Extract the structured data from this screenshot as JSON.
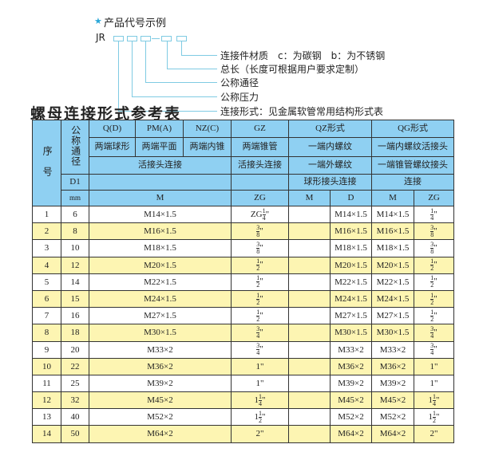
{
  "legend": {
    "heading": "产品代号示例",
    "star_color": "#2aa7d8",
    "code": "JR",
    "labels": [
      "连接件材质　c：为碳钢　b：为不锈钢",
      "总长（长度可根据用户要求定制）",
      "公称通径",
      "公称压力",
      "连接形式：见金属软管常用结构形式表"
    ]
  },
  "title": "螺母连接形式参考表",
  "table": {
    "header": {
      "seq": "序　号",
      "dn": "公称通径",
      "d1": "D1",
      "mm": "mm",
      "qd": "Q(D)",
      "pm": "PM(A)",
      "nz": "NZ(C)",
      "gz": "GZ",
      "qz": "QZ形式",
      "qg": "QG形式",
      "qd2": "两端球形",
      "pm2": "两端平面",
      "nz2": "两端内锥",
      "gz2": "两端锥管",
      "qz2": "一端内螺纹",
      "qg2": "一端内螺纹活接头",
      "union": "活接头连接",
      "gz3": "活接头连接",
      "qz3": "一端外螺纹",
      "qg3": "一端锥管螺纹接头",
      "qz4": "球形接头连接",
      "qg4": "连接",
      "m": "M",
      "zg": "ZG",
      "qzm": "M",
      "qzd": "D",
      "qgm": "M",
      "qgzg": "ZG"
    },
    "header_color": "#8fd0f2",
    "stripe_color": "#fdf5b2",
    "rows": [
      {
        "no": "1",
        "dn": "6",
        "m": "M14×1.5",
        "zg": "ZG|1/4|\"",
        "qzm": "",
        "qzd": "M14×1.5",
        "qgm": "M14×1.5",
        "qgzg": "|1/4|\""
      },
      {
        "no": "2",
        "dn": "8",
        "m": "M16×1.5",
        "zg": "|3/8|\"",
        "qzm": "",
        "qzd": "M16×1.5",
        "qgm": "M16×1.5",
        "qgzg": "|3/8|\""
      },
      {
        "no": "3",
        "dn": "10",
        "m": "M18×1.5",
        "zg": "|3/8|\"",
        "qzm": "",
        "qzd": "M18×1.5",
        "qgm": "M18×1.5",
        "qgzg": "|3/8|\""
      },
      {
        "no": "4",
        "dn": "12",
        "m": "M20×1.5",
        "zg": "|1/2|\"",
        "qzm": "",
        "qzd": "M20×1.5",
        "qgm": "M20×1.5",
        "qgzg": "|1/2|\""
      },
      {
        "no": "5",
        "dn": "14",
        "m": "M22×1.5",
        "zg": "|1/2|\"",
        "qzm": "",
        "qzd": "M22×1.5",
        "qgm": "M22×1.5",
        "qgzg": "|1/2|\""
      },
      {
        "no": "6",
        "dn": "15",
        "m": "M24×1.5",
        "zg": "|1/2|\"",
        "qzm": "",
        "qzd": "M24×1.5",
        "qgm": "M24×1.5",
        "qgzg": "|1/2|\""
      },
      {
        "no": "7",
        "dn": "16",
        "m": "M27×1.5",
        "zg": "|1/2|\"",
        "qzm": "",
        "qzd": "M27×1.5",
        "qgm": "M27×1.5",
        "qgzg": "|1/2|\""
      },
      {
        "no": "8",
        "dn": "18",
        "m": "M30×1.5",
        "zg": "|3/4|\"",
        "qzm": "",
        "qzd": "M30×1.5",
        "qgm": "M30×1.5",
        "qgzg": "|3/4|\""
      },
      {
        "no": "9",
        "dn": "20",
        "m": "M33×2",
        "zg": "|3/4|\"",
        "qzm": "",
        "qzd": "M33×2",
        "qgm": "M33×2",
        "qgzg": "|3/4|\""
      },
      {
        "no": "10",
        "dn": "22",
        "m": "M36×2",
        "zg": "1\"",
        "qzm": "",
        "qzd": "M36×2",
        "qgm": "M36×2",
        "qgzg": "1\""
      },
      {
        "no": "11",
        "dn": "25",
        "m": "M39×2",
        "zg": "1\"",
        "qzm": "",
        "qzd": "M39×2",
        "qgm": "M39×2",
        "qgzg": "1\""
      },
      {
        "no": "12",
        "dn": "32",
        "m": "M45×2",
        "zg": "1|1/4|\"",
        "qzm": "",
        "qzd": "M45×2",
        "qgm": "M45×2",
        "qgzg": "1|1/4|\""
      },
      {
        "no": "13",
        "dn": "40",
        "m": "M52×2",
        "zg": "1|1/2|\"",
        "qzm": "",
        "qzd": "M52×2",
        "qgm": "M52×2",
        "qgzg": "1|1/2|\""
      },
      {
        "no": "14",
        "dn": "50",
        "m": "M64×2",
        "zg": "2\"",
        "qzm": "",
        "qzd": "M64×2",
        "qgm": "M64×2",
        "qgzg": "2\""
      }
    ]
  }
}
